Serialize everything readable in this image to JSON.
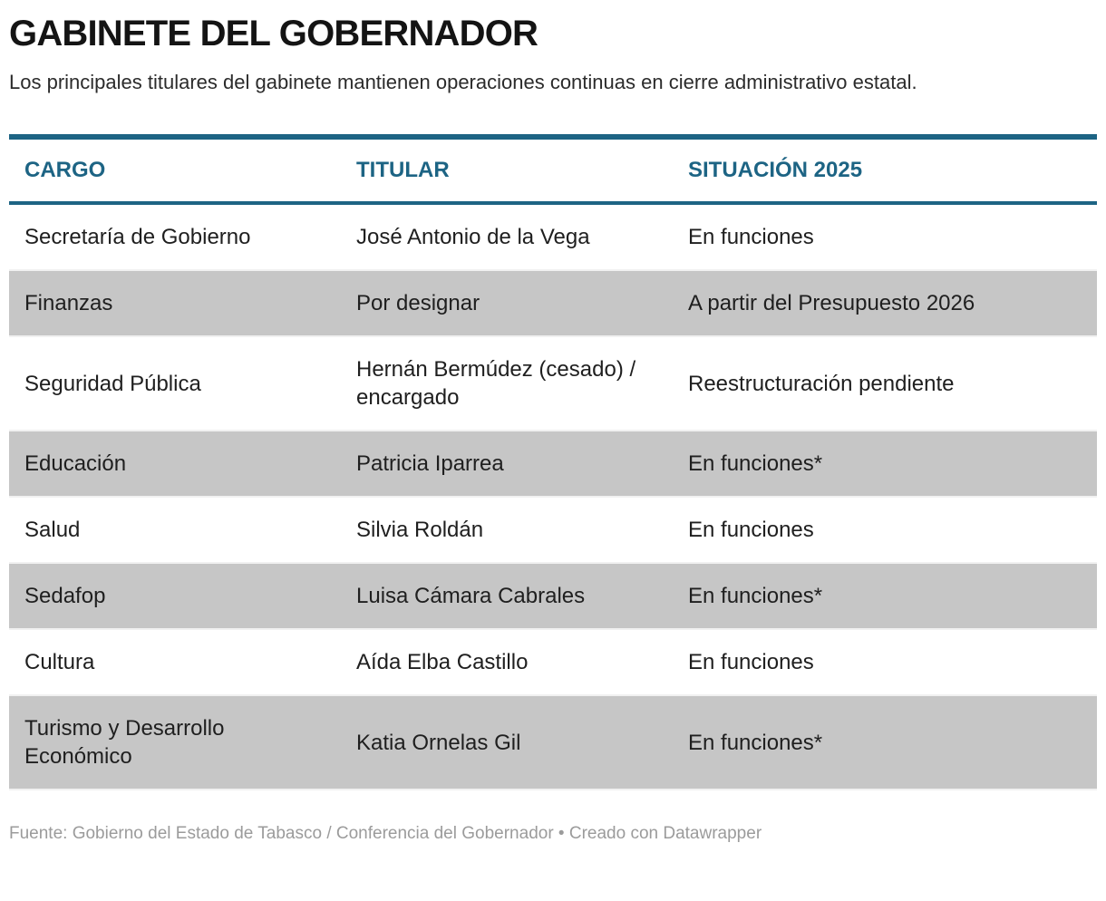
{
  "chart_data": {
    "type": "table",
    "title": "GABINETE DEL GOBERNADOR",
    "subtitle": "Los principales titulares del gabinete mantienen operaciones continuas en cierre administrativo estatal.",
    "columns": [
      "CARGO",
      "TITULAR",
      "SITUACIÓN 2025"
    ],
    "rows": [
      {
        "cargo": "Secretaría de Gobierno",
        "titular": "José Antonio de la Vega",
        "situacion": "En funciones"
      },
      {
        "cargo": "Finanzas",
        "titular": "Por designar",
        "situacion": "A partir del Presupuesto 2026"
      },
      {
        "cargo": "Seguridad Pública",
        "titular": "Hernán Bermúdez (cesado) / encargado",
        "situacion": "Reestructuración pendiente"
      },
      {
        "cargo": "Educación",
        "titular": "Patricia Iparrea",
        "situacion": "En funciones*"
      },
      {
        "cargo": "Salud",
        "titular": "Silvia Roldán",
        "situacion": "En funciones"
      },
      {
        "cargo": "Sedafop",
        "titular": "Luisa Cámara Cabrales",
        "situacion": "En funciones*"
      },
      {
        "cargo": "Cultura",
        "titular": "Aída Elba Castillo",
        "situacion": "En funciones"
      },
      {
        "cargo": "Turismo y Desarrollo Económico",
        "titular": "Katia Ornelas Gil",
        "situacion": "En funciones*"
      }
    ],
    "source": "Fuente: Gobierno del Estado de Tabasco / Conferencia del Gobernador • Creado con Datawrapper",
    "layout": {
      "grid": "off",
      "row_striping": "alternate gray starting at second data row"
    }
  },
  "colors": {
    "accent_teal": "#1d6484",
    "row_alt_gray": "#c6c6c6",
    "row_separator": "#f1f1f1",
    "body_text": "#1f1f1f",
    "footer_text": "#9b9b9b"
  }
}
